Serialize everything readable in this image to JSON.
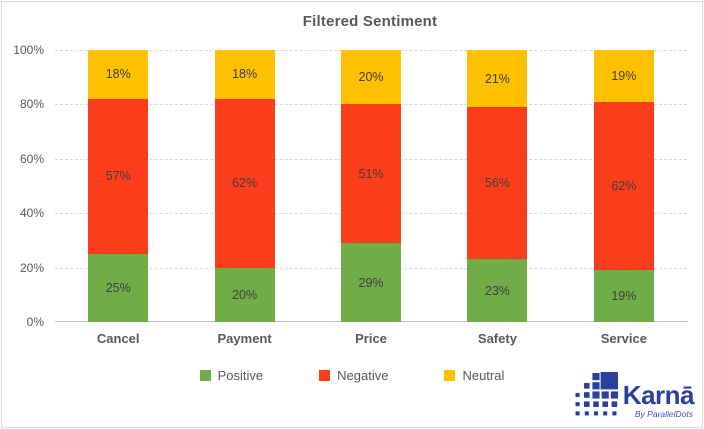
{
  "title": "Filtered Sentiment",
  "chart_data": {
    "type": "bar",
    "stacked": true,
    "title": "Filtered Sentiment",
    "categories": [
      "Cancel",
      "Payment",
      "Price",
      "Safety",
      "Service"
    ],
    "series": [
      {
        "name": "Positive",
        "color": "#70AD47",
        "values": [
          25,
          20,
          29,
          23,
          19
        ]
      },
      {
        "name": "Negative",
        "color": "#FC3D1C",
        "values": [
          57,
          62,
          51,
          56,
          62
        ]
      },
      {
        "name": "Neutral",
        "color": "#FFC000",
        "values": [
          18,
          18,
          20,
          21,
          19
        ]
      }
    ],
    "y_ticks": [
      {
        "label": "100%",
        "value": 100
      },
      {
        "label": "80%",
        "value": 80
      },
      {
        "label": "60%",
        "value": 60
      },
      {
        "label": "40%",
        "value": 40
      },
      {
        "label": "20%",
        "value": 20
      },
      {
        "label": "0%",
        "value": 0
      }
    ],
    "ylim": [
      0,
      100
    ],
    "grid": "horizontal-dashed",
    "legend_position": "bottom",
    "data_label_format": "percent"
  },
  "colors": {
    "grid": "#D9D9D9",
    "axis": "#BFBFBF",
    "text": "#595959",
    "data_label": "#404040",
    "logo_blue": "#2B3F9E"
  },
  "branding": {
    "name": "Karnā",
    "tagline": "By ParallelDots"
  }
}
